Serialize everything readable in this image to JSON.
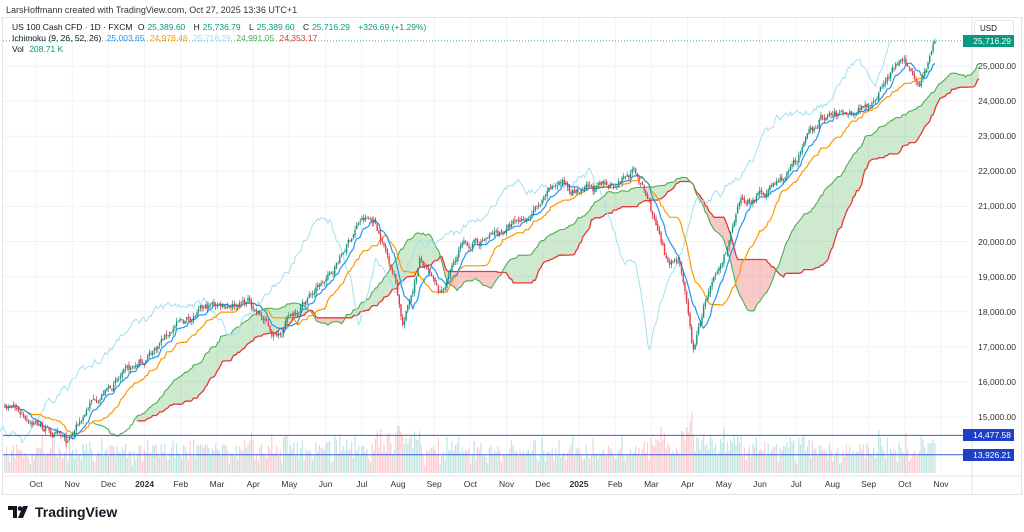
{
  "credit": "LarsHoffmann created with TradingView.com, Oct 27, 2025 13:36 UTC+1",
  "legend": {
    "symbol": "US 100 Cash CFD · 1D · FXCM",
    "o_label": "O",
    "o": "25,389.60",
    "h_label": "H",
    "h": "25,736.79",
    "l_label": "L",
    "l": "25,389.60",
    "c_label": "C",
    "c": "25,716.29",
    "change": "+326.69 (+1.29%)",
    "ichimoku_label": "Ichimoku (9, 26, 52, 26)",
    "ichi": [
      "25,003.65",
      "24,978.46",
      "25,716.29",
      "24,991.05",
      "24,353.17"
    ],
    "vol_label": "Vol",
    "vol": "208.71 K"
  },
  "currency": "USD",
  "colors": {
    "up": "#089981",
    "down": "#f23645",
    "conversion": "#2196f3",
    "base": "#ff9800",
    "lagging": "#a0e1ef",
    "spanA": "#4caf50",
    "spanB": "#e53935",
    "hline": "#3d5bd9"
  },
  "price_tags": [
    {
      "label": "25,716.29",
      "value": 25716.29,
      "color": "#089981"
    },
    {
      "label": "14,477.58",
      "value": 14477.58,
      "color": "#1e40c8"
    },
    {
      "label": "13,926.21",
      "value": 13926.21,
      "color": "#1e40c8"
    }
  ],
  "chart_data": {
    "type": "candlestick",
    "y_ticks": [
      25000,
      24000,
      23000,
      22000,
      21000,
      20000,
      19000,
      18000,
      17000,
      16000,
      15000
    ],
    "y_tick_labels": [
      "25,000.00",
      "24,000.00",
      "23,000.00",
      "22,000.00",
      "21,000.00",
      "20,000.00",
      "19,000.00",
      "18,000.00",
      "17,000.00",
      "16,000.00",
      "15,000.00"
    ],
    "x_labels": [
      {
        "t": "Oct",
        "m": 0
      },
      {
        "t": "Nov",
        "m": 1
      },
      {
        "t": "Dec",
        "m": 2
      },
      {
        "t": "2024",
        "m": 3,
        "bold": true
      },
      {
        "t": "Feb",
        "m": 4
      },
      {
        "t": "Mar",
        "m": 5
      },
      {
        "t": "Apr",
        "m": 6
      },
      {
        "t": "May",
        "m": 7
      },
      {
        "t": "Jun",
        "m": 8
      },
      {
        "t": "Jul",
        "m": 9
      },
      {
        "t": "Aug",
        "m": 10
      },
      {
        "t": "Sep",
        "m": 11
      },
      {
        "t": "Oct",
        "m": 12
      },
      {
        "t": "Nov",
        "m": 13
      },
      {
        "t": "Dec",
        "m": 14
      },
      {
        "t": "2025",
        "m": 15,
        "bold": true
      },
      {
        "t": "Feb",
        "m": 16
      },
      {
        "t": "Mar",
        "m": 17
      },
      {
        "t": "Apr",
        "m": 18
      },
      {
        "t": "May",
        "m": 19
      },
      {
        "t": "Jun",
        "m": 20
      },
      {
        "t": "Jul",
        "m": 21
      },
      {
        "t": "Aug",
        "m": 22
      },
      {
        "t": "Sep",
        "m": 23
      },
      {
        "t": "Oct",
        "m": 24
      },
      {
        "t": "Nov",
        "m": 25
      }
    ],
    "price_path_months_vs_close": [
      [
        -0.86,
        15400
      ],
      [
        0.11,
        14800
      ],
      [
        0.88,
        14200
      ],
      [
        1.49,
        15400
      ],
      [
        2.6,
        16300
      ],
      [
        3.15,
        16800
      ],
      [
        3.84,
        17600
      ],
      [
        4.94,
        18200
      ],
      [
        5.91,
        18300
      ],
      [
        6.6,
        17300
      ],
      [
        7.29,
        18200
      ],
      [
        8.12,
        19000
      ],
      [
        8.95,
        20600
      ],
      [
        9.36,
        20600
      ],
      [
        9.92,
        19000
      ],
      [
        10.14,
        17600
      ],
      [
        10.61,
        19500
      ],
      [
        11.16,
        18400
      ],
      [
        11.71,
        19800
      ],
      [
        12.27,
        20000
      ],
      [
        13.09,
        20400
      ],
      [
        13.92,
        21000
      ],
      [
        14.48,
        21700
      ],
      [
        15.03,
        21400
      ],
      [
        15.58,
        21500
      ],
      [
        16.55,
        22000
      ],
      [
        16.96,
        21000
      ],
      [
        17.38,
        19500
      ],
      [
        17.79,
        19500
      ],
      [
        18.15,
        16800
      ],
      [
        18.48,
        18300
      ],
      [
        18.9,
        19200
      ],
      [
        19.45,
        21000
      ],
      [
        20.41,
        21600
      ],
      [
        20.83,
        22000
      ],
      [
        21.66,
        23500
      ],
      [
        22.49,
        23700
      ],
      [
        23.04,
        24000
      ],
      [
        23.87,
        25100
      ],
      [
        24.42,
        24600
      ],
      [
        24.83,
        25716
      ]
    ],
    "horizontal_lines": [
      14477.58,
      13926.21
    ],
    "ichimoku": {
      "conversion": 9,
      "base": 26,
      "spanB": 52,
      "displacement": 26
    }
  }
}
